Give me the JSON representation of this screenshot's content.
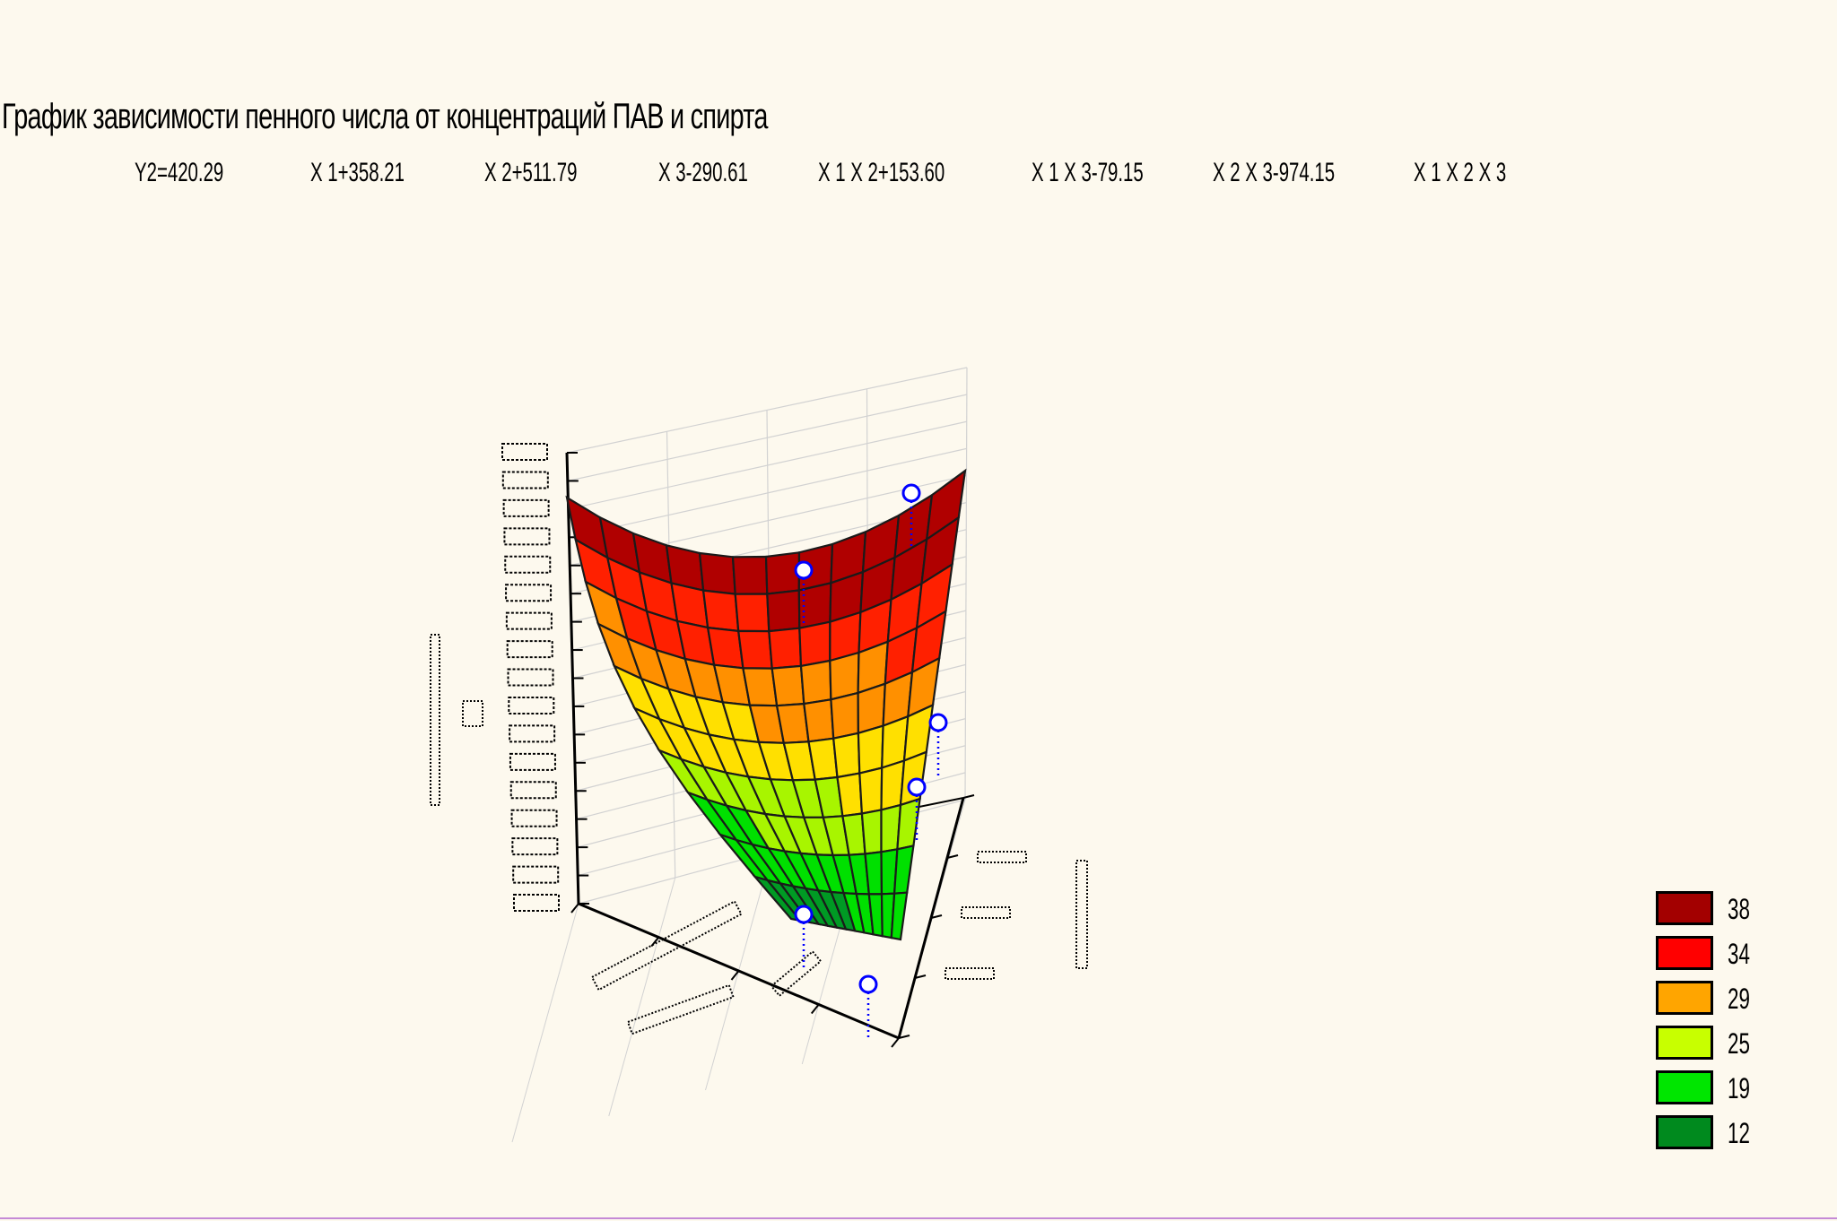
{
  "title": "График зависимости пенного числа  от концентраций ПАВ и спирта",
  "equation_terms": [
    "Y2=420.29",
    "X  1+358.21",
    "X  2+511.79",
    "X  3-290.61",
    "X  1  X  2+153.60",
    "X  1  X  3-79.15",
    "X  2  X  3-974.15",
    "X  1  X  2  X  3"
  ],
  "chart_data": {
    "type": "surface",
    "title": "График зависимости пенного числа  от концентраций ПАВ и спирта",
    "grid": true,
    "legend_position": "bottom-right",
    "legend": [
      {
        "label": "38",
        "color": "#a30000"
      },
      {
        "label": "34",
        "color": "#ff0000"
      },
      {
        "label": "29",
        "color": "#ffa500"
      },
      {
        "label": "25",
        "color": "#c8ff00"
      },
      {
        "label": "19",
        "color": "#00e600"
      },
      {
        "label": "12",
        "color": "#008a1e"
      }
    ],
    "observed_points_count": 7
  },
  "colors": {
    "background": "#fdf9ee",
    "grid": "#cfcfcf",
    "points": "#0000ff"
  }
}
